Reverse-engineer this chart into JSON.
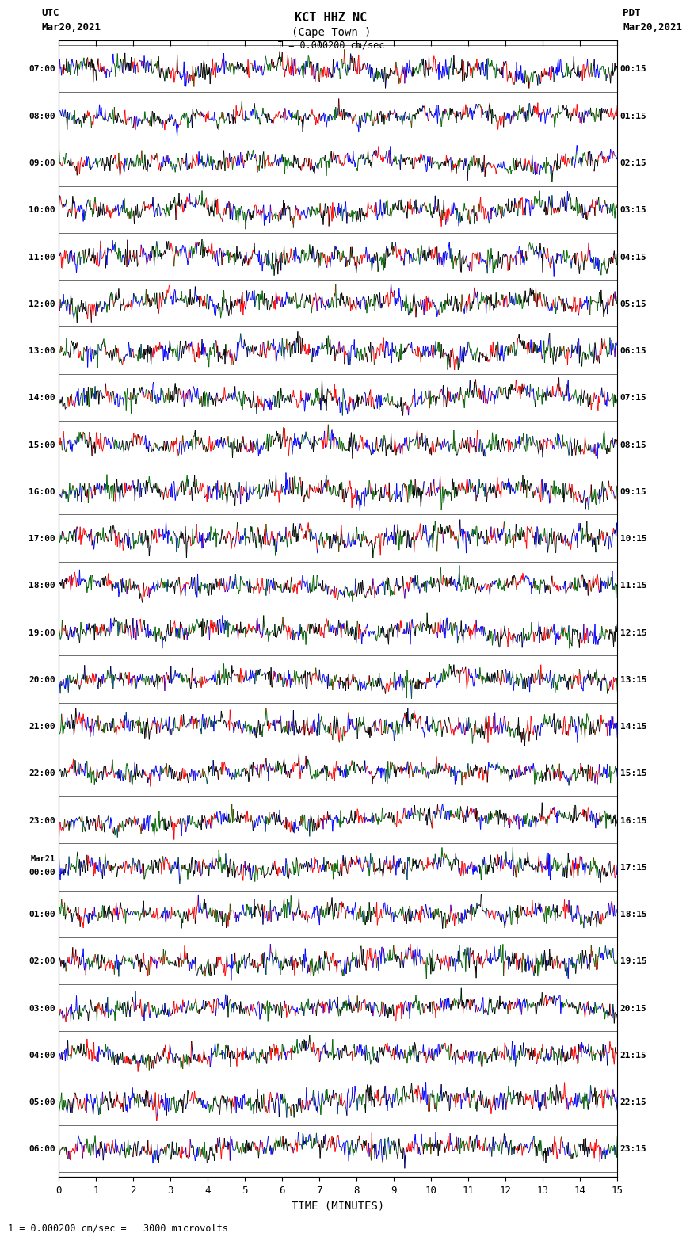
{
  "title_line1": "KCT HHZ NC",
  "title_line2": "(Cape Town )",
  "scale_text": "I = 0.000200 cm/sec",
  "footer_text": "1 = 0.000200 cm/sec =   3000 microvolts",
  "utc_label": "UTC",
  "utc_date": "Mar20,2021",
  "pdt_label": "PDT",
  "pdt_date": "Mar20,2021",
  "xlabel": "TIME (MINUTES)",
  "xmin": 0,
  "xmax": 15,
  "num_rows": 24,
  "utc_times": [
    "07:00",
    "08:00",
    "09:00",
    "10:00",
    "11:00",
    "12:00",
    "13:00",
    "14:00",
    "15:00",
    "16:00",
    "17:00",
    "18:00",
    "19:00",
    "20:00",
    "21:00",
    "22:00",
    "23:00",
    "00:00",
    "01:00",
    "02:00",
    "03:00",
    "04:00",
    "05:00",
    "06:00"
  ],
  "utc_extra": [
    false,
    false,
    false,
    false,
    false,
    false,
    false,
    false,
    false,
    false,
    false,
    false,
    false,
    false,
    false,
    false,
    false,
    true,
    false,
    false,
    false,
    false,
    false,
    false
  ],
  "pdt_times": [
    "00:15",
    "01:15",
    "02:15",
    "03:15",
    "04:15",
    "05:15",
    "06:15",
    "07:15",
    "08:15",
    "09:15",
    "10:15",
    "11:15",
    "12:15",
    "13:15",
    "14:15",
    "15:15",
    "16:15",
    "17:15",
    "18:15",
    "19:15",
    "20:15",
    "21:15",
    "22:15",
    "23:15"
  ],
  "bg_color": "#ffffff",
  "colors": [
    "#ff0000",
    "#0000ff",
    "#006400",
    "#000000"
  ],
  "seed": 42,
  "samples_per_row": 900,
  "amplitude": 0.42,
  "noise_scale": 0.8
}
